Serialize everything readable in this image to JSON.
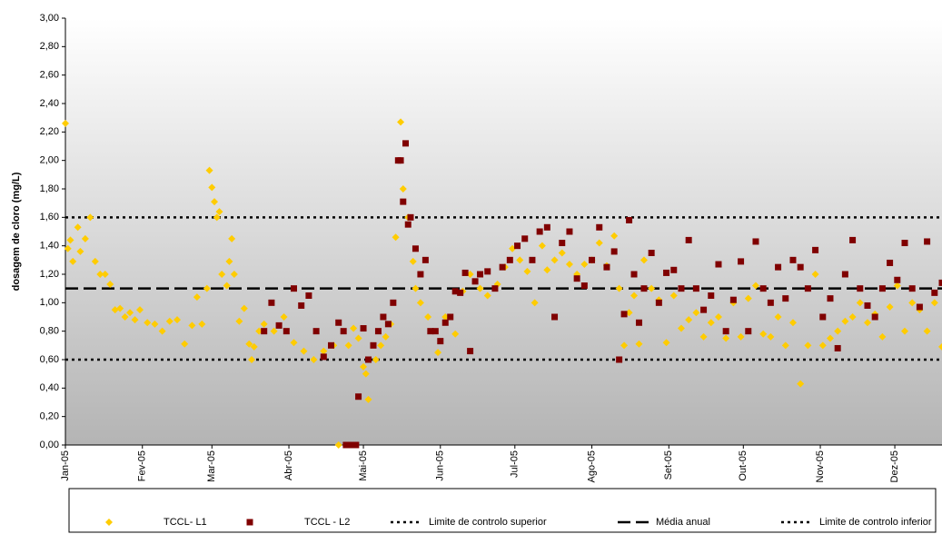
{
  "chart_data": {
    "type": "scatter",
    "y_label": "dosagem de cloro (mg/L)",
    "xlim": [
      0,
      353
    ],
    "ylim": [
      0,
      3
    ],
    "xticks": [
      {
        "value": 0,
        "label": "Jan-05"
      },
      {
        "value": 31,
        "label": "Fev-05"
      },
      {
        "value": 59,
        "label": "Mar-05"
      },
      {
        "value": 90,
        "label": "Abr-05"
      },
      {
        "value": 120,
        "label": "Mai-05"
      },
      {
        "value": 151,
        "label": "Jun-05"
      },
      {
        "value": 181,
        "label": "Jul-05"
      },
      {
        "value": 212,
        "label": "Ago-05"
      },
      {
        "value": 243,
        "label": "Set-05"
      },
      {
        "value": 273,
        "label": "Out-05"
      },
      {
        "value": 304,
        "label": "Nov-05"
      },
      {
        "value": 334,
        "label": "Dez-05"
      }
    ],
    "yticks": [
      {
        "value": 0,
        "label": "0,00"
      },
      {
        "value": 0.2,
        "label": "0,20"
      },
      {
        "value": 0.4,
        "label": "0,40"
      },
      {
        "value": 0.6,
        "label": "0,60"
      },
      {
        "value": 0.8,
        "label": "0,80"
      },
      {
        "value": 1.0,
        "label": "1,00"
      },
      {
        "value": 1.2,
        "label": "1,20"
      },
      {
        "value": 1.4,
        "label": "1,40"
      },
      {
        "value": 1.6,
        "label": "1,60"
      },
      {
        "value": 1.8,
        "label": "1,80"
      },
      {
        "value": 2.0,
        "label": "2,00"
      },
      {
        "value": 2.2,
        "label": "2,20"
      },
      {
        "value": 2.4,
        "label": "2,40"
      },
      {
        "value": 2.6,
        "label": "2,60"
      },
      {
        "value": 2.8,
        "label": "2,80"
      },
      {
        "value": 3.0,
        "label": "3,00"
      }
    ],
    "series": [
      {
        "name": "TCCL- L1",
        "color": "#ffcc00",
        "marker": "diamond",
        "x": [
          0,
          1,
          2,
          3,
          5,
          6,
          8,
          10,
          12,
          14,
          16,
          18,
          20,
          22,
          24,
          26,
          28,
          30,
          33,
          36,
          39,
          42,
          45,
          48,
          51,
          53,
          55,
          57,
          58,
          59,
          60,
          61,
          62,
          63,
          65,
          66,
          67,
          68,
          70,
          72,
          74,
          75,
          76,
          78,
          80,
          84,
          88,
          92,
          96,
          100,
          104,
          108,
          110,
          114,
          116,
          118,
          120,
          121,
          122,
          125,
          127,
          129,
          131,
          133,
          135,
          136,
          138,
          140,
          141,
          143,
          146,
          150,
          153,
          157,
          160,
          163,
          167,
          170,
          174,
          177,
          180,
          183,
          186,
          189,
          192,
          194,
          197,
          200,
          203,
          206,
          209,
          212,
          215,
          218,
          221,
          223,
          225,
          227,
          229,
          231,
          233,
          236,
          239,
          242,
          245,
          248,
          251,
          254,
          257,
          260,
          263,
          266,
          269,
          272,
          275,
          278,
          281,
          284,
          287,
          290,
          293,
          296,
          299,
          302,
          305,
          308,
          311,
          314,
          317,
          320,
          323,
          326,
          329,
          332,
          335,
          338,
          341,
          344,
          347,
          350,
          353
        ],
        "values": [
          2.26,
          1.38,
          1.44,
          1.29,
          1.53,
          1.36,
          1.45,
          1.6,
          1.29,
          1.2,
          1.2,
          1.13,
          0.95,
          0.96,
          0.9,
          0.93,
          0.88,
          0.95,
          0.86,
          0.85,
          0.8,
          0.87,
          0.88,
          0.71,
          0.84,
          1.04,
          0.85,
          1.1,
          1.93,
          1.81,
          1.71,
          1.6,
          1.64,
          1.2,
          1.12,
          1.29,
          1.45,
          1.2,
          0.87,
          0.96,
          0.71,
          0.6,
          0.69,
          0.8,
          0.85,
          0.8,
          0.9,
          0.72,
          0.66,
          0.6,
          0.66,
          0.7,
          0.0,
          0.7,
          0.82,
          0.75,
          0.55,
          0.5,
          0.32,
          0.6,
          0.7,
          0.76,
          0.85,
          1.46,
          2.27,
          1.8,
          1.6,
          1.29,
          1.1,
          1.0,
          0.9,
          0.65,
          0.9,
          0.78,
          1.08,
          1.2,
          1.1,
          1.05,
          1.13,
          1.25,
          1.38,
          1.3,
          1.22,
          1.0,
          1.4,
          1.23,
          1.3,
          1.35,
          1.27,
          1.2,
          1.27,
          1.3,
          1.42,
          1.26,
          1.47,
          1.1,
          0.7,
          0.93,
          1.05,
          0.71,
          1.3,
          1.1,
          1.02,
          0.72,
          1.05,
          0.82,
          0.88,
          0.93,
          0.76,
          0.86,
          0.9,
          0.75,
          1.0,
          0.76,
          1.03,
          1.12,
          0.78,
          0.76,
          0.9,
          0.7,
          0.86,
          0.43,
          0.7,
          1.2,
          0.7,
          0.75,
          0.8,
          0.87,
          0.9,
          1.0,
          0.86,
          0.92,
          0.76,
          0.97,
          1.12,
          0.8,
          1.0,
          0.95,
          0.8,
          1.0,
          0.69
        ]
      },
      {
        "name": "TCCL - L2",
        "color": "#800000",
        "marker": "square",
        "x": [
          80,
          83,
          86,
          89,
          92,
          95,
          98,
          101,
          104,
          107,
          110,
          112,
          113,
          115,
          117,
          118,
          120,
          122,
          124,
          126,
          128,
          130,
          132,
          134,
          135,
          136,
          137,
          138,
          139,
          141,
          143,
          145,
          147,
          149,
          151,
          153,
          155,
          157,
          159,
          161,
          163,
          165,
          167,
          170,
          173,
          176,
          179,
          182,
          185,
          188,
          191,
          194,
          197,
          200,
          203,
          206,
          209,
          212,
          215,
          218,
          221,
          223,
          225,
          227,
          229,
          231,
          233,
          236,
          239,
          242,
          245,
          248,
          251,
          254,
          257,
          260,
          263,
          266,
          269,
          272,
          275,
          278,
          281,
          284,
          287,
          290,
          293,
          296,
          299,
          302,
          305,
          308,
          311,
          314,
          317,
          320,
          323,
          326,
          329,
          332,
          335,
          338,
          341,
          344,
          347,
          350,
          353
        ],
        "values": [
          0.8,
          1.0,
          0.84,
          0.8,
          1.1,
          0.98,
          1.05,
          0.8,
          0.62,
          0.7,
          0.86,
          0.8,
          0.0,
          0.0,
          0.0,
          0.34,
          0.82,
          0.6,
          0.7,
          0.8,
          0.9,
          0.85,
          1.0,
          2.0,
          2.0,
          1.71,
          2.12,
          1.55,
          1.6,
          1.38,
          1.2,
          1.3,
          0.8,
          0.8,
          0.73,
          0.86,
          0.9,
          1.08,
          1.07,
          1.21,
          0.66,
          1.15,
          1.2,
          1.22,
          1.1,
          1.25,
          1.3,
          1.4,
          1.45,
          1.3,
          1.5,
          1.53,
          0.9,
          1.42,
          1.5,
          1.17,
          1.12,
          1.3,
          1.53,
          1.25,
          1.36,
          0.6,
          0.92,
          1.58,
          1.2,
          0.86,
          1.1,
          1.35,
          1.0,
          1.21,
          1.23,
          1.1,
          1.44,
          1.1,
          0.95,
          1.05,
          1.27,
          0.8,
          1.02,
          1.29,
          0.8,
          1.43,
          1.1,
          1.0,
          1.25,
          1.03,
          1.3,
          1.25,
          1.1,
          1.37,
          0.9,
          1.03,
          0.68,
          1.2,
          1.44,
          1.1,
          0.98,
          0.9,
          1.1,
          1.28,
          1.16,
          1.42,
          1.1,
          0.97,
          1.43,
          1.07,
          1.14
        ]
      }
    ],
    "reference_lines": [
      {
        "name": "Limite de controlo superior",
        "value": 1.6,
        "style": "dotted"
      },
      {
        "name": "Média anual",
        "value": 1.1,
        "style": "dashed"
      },
      {
        "name": "Limite de controlo inferior",
        "value": 0.6,
        "style": "dotted"
      }
    ]
  }
}
